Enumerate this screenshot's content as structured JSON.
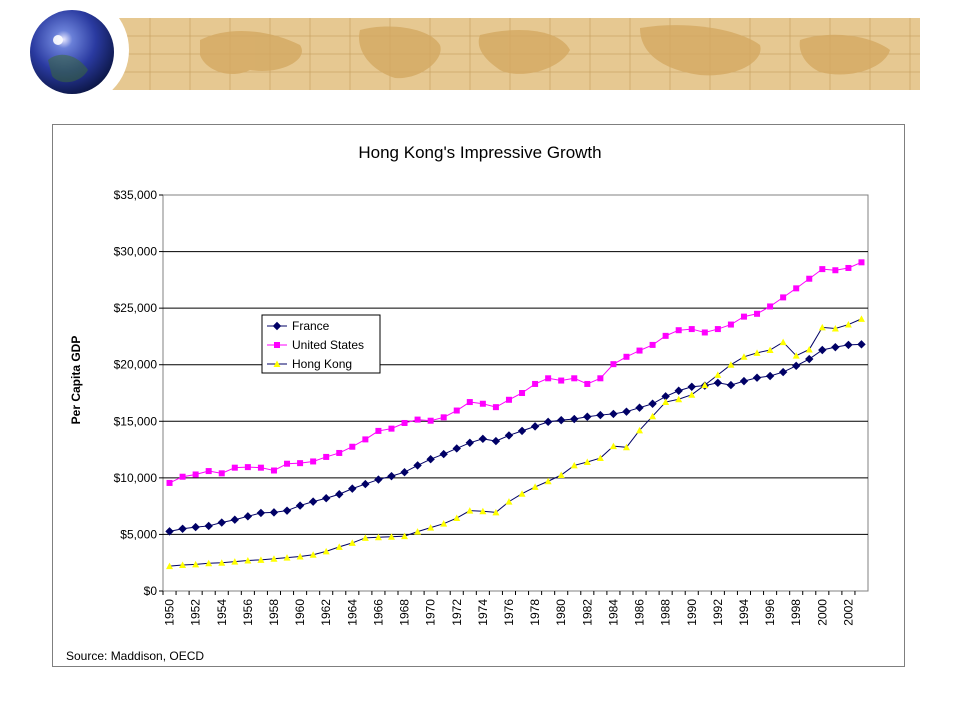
{
  "chart_data": {
    "type": "line",
    "title": "Hong Kong's Impressive Growth",
    "xlabel": "",
    "ylabel": "Per Capita GDP",
    "source": "Source: Maddison, OECD",
    "ylim": [
      0,
      35000
    ],
    "y_ticks": [
      "$0",
      "$5,000",
      "$10,000",
      "$15,000",
      "$20,000",
      "$25,000",
      "$30,000",
      "$35,000"
    ],
    "x_tick_labels": [
      "1950",
      "1952",
      "1954",
      "1956",
      "1958",
      "1960",
      "1962",
      "1964",
      "1966",
      "1968",
      "1970",
      "1972",
      "1974",
      "1976",
      "1978",
      "1980",
      "1982",
      "1984",
      "1986",
      "1988",
      "1990",
      "1992",
      "1994",
      "1996",
      "1998",
      "2000",
      "2002"
    ],
    "x": [
      1950,
      1951,
      1952,
      1953,
      1954,
      1955,
      1956,
      1957,
      1958,
      1959,
      1960,
      1961,
      1962,
      1963,
      1964,
      1965,
      1966,
      1967,
      1968,
      1969,
      1970,
      1971,
      1972,
      1973,
      1974,
      1975,
      1976,
      1977,
      1978,
      1979,
      1980,
      1981,
      1982,
      1983,
      1984,
      1985,
      1986,
      1987,
      1988,
      1989,
      1990,
      1991,
      1992,
      1993,
      1994,
      1995,
      1996,
      1997,
      1998,
      1999,
      2000,
      2001,
      2002,
      2003
    ],
    "grid": "horizontal",
    "legend_position": "left-middle",
    "series": [
      {
        "name": "France",
        "color": "#000066",
        "marker": "diamond",
        "values": [
          5270,
          5500,
          5650,
          5750,
          6050,
          6300,
          6600,
          6900,
          6950,
          7100,
          7550,
          7900,
          8200,
          8550,
          9050,
          9450,
          9850,
          10150,
          10500,
          11100,
          11650,
          12100,
          12600,
          13100,
          13450,
          13250,
          13750,
          14150,
          14550,
          14950,
          15100,
          15200,
          15400,
          15550,
          15650,
          15850,
          16200,
          16550,
          17200,
          17700,
          18050,
          18150,
          18400,
          18200,
          18550,
          18850,
          19000,
          19350,
          19900,
          20500,
          21300,
          21550,
          21750,
          21800
        ]
      },
      {
        "name": "United States",
        "color": "#ff00ff",
        "marker": "square",
        "values": [
          9550,
          10100,
          10300,
          10600,
          10400,
          10900,
          10950,
          10900,
          10650,
          11250,
          11300,
          11450,
          11850,
          12200,
          12750,
          13400,
          14150,
          14350,
          14850,
          15150,
          15050,
          15350,
          15950,
          16700,
          16550,
          16250,
          16900,
          17500,
          18300,
          18800,
          18600,
          18800,
          18300,
          18800,
          20050,
          20700,
          21250,
          21750,
          22550,
          23050,
          23150,
          22850,
          23150,
          23550,
          24250,
          24500,
          25150,
          25950,
          26750,
          27600,
          28450,
          28350,
          28550,
          29050
        ]
      },
      {
        "name": "Hong Kong",
        "color": "#ffff00",
        "marker": "triangle",
        "values": [
          2200,
          2300,
          2350,
          2450,
          2500,
          2600,
          2700,
          2750,
          2850,
          2950,
          3050,
          3200,
          3500,
          3900,
          4250,
          4700,
          4750,
          4800,
          4850,
          5250,
          5600,
          5950,
          6450,
          7100,
          7050,
          6950,
          7900,
          8600,
          9200,
          9700,
          10250,
          11100,
          11400,
          11750,
          12800,
          12700,
          14200,
          15450,
          16700,
          16950,
          17350,
          18200,
          19100,
          20000,
          20700,
          21050,
          21300,
          22000,
          20800,
          21350,
          23300,
          23200,
          23550,
          24050
        ]
      }
    ]
  }
}
